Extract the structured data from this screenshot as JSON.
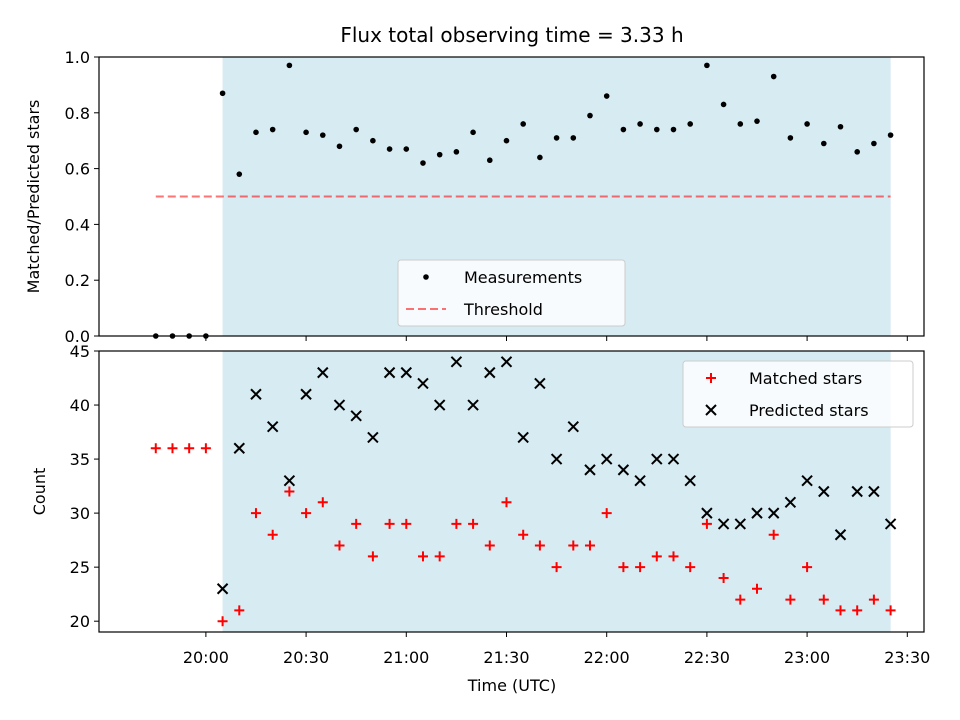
{
  "chart_data": {
    "title": "Flux total observing time = 3.33 h",
    "xlabel": "Time (UTC)",
    "x_ticks": [
      "20:00",
      "20:30",
      "21:00",
      "21:30",
      "22:00",
      "22:30",
      "23:00",
      "23:30"
    ],
    "observing_window": [
      "20:05",
      "23:25"
    ],
    "colors": {
      "window": "#add8e6",
      "measurements": "#000000",
      "threshold": "#ff0000",
      "matched": "#ff0000",
      "predicted": "#000000"
    },
    "panels": [
      {
        "type": "scatter",
        "ylabel": "Matched/Predicted stars",
        "ylim": [
          0.0,
          1.0
        ],
        "y_ticks": [
          0.0,
          0.2,
          0.4,
          0.6,
          0.8,
          1.0
        ],
        "legend_position": "lower-center",
        "series": [
          {
            "name": "Measurements",
            "marker": "dot",
            "points": [
              [
                "19:45",
                0.0
              ],
              [
                "19:50",
                0.0
              ],
              [
                "19:55",
                0.0
              ],
              [
                "20:00",
                0.0
              ],
              [
                "20:05",
                0.87
              ],
              [
                "20:10",
                0.58
              ],
              [
                "20:15",
                0.73
              ],
              [
                "20:20",
                0.74
              ],
              [
                "20:25",
                0.97
              ],
              [
                "20:30",
                0.73
              ],
              [
                "20:35",
                0.72
              ],
              [
                "20:40",
                0.68
              ],
              [
                "20:45",
                0.74
              ],
              [
                "20:50",
                0.7
              ],
              [
                "20:55",
                0.67
              ],
              [
                "21:00",
                0.67
              ],
              [
                "21:05",
                0.62
              ],
              [
                "21:10",
                0.65
              ],
              [
                "21:15",
                0.66
              ],
              [
                "21:20",
                0.73
              ],
              [
                "21:25",
                0.63
              ],
              [
                "21:30",
                0.7
              ],
              [
                "21:35",
                0.76
              ],
              [
                "21:40",
                0.64
              ],
              [
                "21:45",
                0.71
              ],
              [
                "21:50",
                0.71
              ],
              [
                "21:55",
                0.79
              ],
              [
                "22:00",
                0.86
              ],
              [
                "22:05",
                0.74
              ],
              [
                "22:10",
                0.76
              ],
              [
                "22:15",
                0.74
              ],
              [
                "22:20",
                0.74
              ],
              [
                "22:25",
                0.76
              ],
              [
                "22:30",
                0.97
              ],
              [
                "22:35",
                0.83
              ],
              [
                "22:40",
                0.76
              ],
              [
                "22:45",
                0.77
              ],
              [
                "22:50",
                0.93
              ],
              [
                "22:55",
                0.71
              ],
              [
                "23:00",
                0.76
              ],
              [
                "23:05",
                0.69
              ],
              [
                "23:10",
                0.75
              ],
              [
                "23:15",
                0.66
              ],
              [
                "23:20",
                0.69
              ],
              [
                "23:25",
                0.72
              ]
            ]
          },
          {
            "name": "Threshold",
            "type": "line",
            "style": "dashed",
            "points": [
              [
                "19:45",
                0.5
              ],
              [
                "23:25",
                0.5
              ]
            ]
          }
        ]
      },
      {
        "type": "scatter",
        "ylabel": "Count",
        "ylim": [
          19,
          45
        ],
        "y_ticks": [
          20,
          25,
          30,
          35,
          40,
          45
        ],
        "legend_position": "top-right",
        "series": [
          {
            "name": "Matched stars",
            "marker": "plus",
            "points": [
              [
                "19:45",
                36
              ],
              [
                "19:50",
                36
              ],
              [
                "19:55",
                36
              ],
              [
                "20:00",
                36
              ],
              [
                "20:05",
                20
              ],
              [
                "20:10",
                21
              ],
              [
                "20:15",
                30
              ],
              [
                "20:20",
                28
              ],
              [
                "20:25",
                32
              ],
              [
                "20:30",
                30
              ],
              [
                "20:35",
                31
              ],
              [
                "20:40",
                27
              ],
              [
                "20:45",
                29
              ],
              [
                "20:50",
                26
              ],
              [
                "20:55",
                29
              ],
              [
                "21:00",
                29
              ],
              [
                "21:05",
                26
              ],
              [
                "21:10",
                26
              ],
              [
                "21:15",
                29
              ],
              [
                "21:20",
                29
              ],
              [
                "21:25",
                27
              ],
              [
                "21:30",
                31
              ],
              [
                "21:35",
                28
              ],
              [
                "21:40",
                27
              ],
              [
                "21:45",
                25
              ],
              [
                "21:50",
                27
              ],
              [
                "21:55",
                27
              ],
              [
                "22:00",
                30
              ],
              [
                "22:05",
                25
              ],
              [
                "22:10",
                25
              ],
              [
                "22:15",
                26
              ],
              [
                "22:20",
                26
              ],
              [
                "22:25",
                25
              ],
              [
                "22:30",
                29
              ],
              [
                "22:35",
                24
              ],
              [
                "22:40",
                22
              ],
              [
                "22:45",
                23
              ],
              [
                "22:50",
                28
              ],
              [
                "22:55",
                22
              ],
              [
                "23:00",
                25
              ],
              [
                "23:05",
                22
              ],
              [
                "23:10",
                21
              ],
              [
                "23:15",
                21
              ],
              [
                "23:20",
                22
              ],
              [
                "23:25",
                21
              ]
            ]
          },
          {
            "name": "Predicted stars",
            "marker": "x",
            "points": [
              [
                "20:05",
                23
              ],
              [
                "20:10",
                36
              ],
              [
                "20:15",
                41
              ],
              [
                "20:20",
                38
              ],
              [
                "20:25",
                33
              ],
              [
                "20:30",
                41
              ],
              [
                "20:35",
                43
              ],
              [
                "20:40",
                40
              ],
              [
                "20:45",
                39
              ],
              [
                "20:50",
                37
              ],
              [
                "20:55",
                43
              ],
              [
                "21:00",
                43
              ],
              [
                "21:05",
                42
              ],
              [
                "21:10",
                40
              ],
              [
                "21:15",
                44
              ],
              [
                "21:20",
                40
              ],
              [
                "21:25",
                43
              ],
              [
                "21:30",
                44
              ],
              [
                "21:35",
                37
              ],
              [
                "21:40",
                42
              ],
              [
                "21:45",
                35
              ],
              [
                "21:50",
                38
              ],
              [
                "21:55",
                34
              ],
              [
                "22:00",
                35
              ],
              [
                "22:05",
                34
              ],
              [
                "22:10",
                33
              ],
              [
                "22:15",
                35
              ],
              [
                "22:20",
                35
              ],
              [
                "22:25",
                33
              ],
              [
                "22:30",
                30
              ],
              [
                "22:35",
                29
              ],
              [
                "22:40",
                29
              ],
              [
                "22:45",
                30
              ],
              [
                "22:50",
                30
              ],
              [
                "22:55",
                31
              ],
              [
                "23:00",
                33
              ],
              [
                "23:05",
                32
              ],
              [
                "23:10",
                28
              ],
              [
                "23:15",
                32
              ],
              [
                "23:20",
                32
              ],
              [
                "23:25",
                29
              ]
            ]
          }
        ]
      }
    ]
  }
}
